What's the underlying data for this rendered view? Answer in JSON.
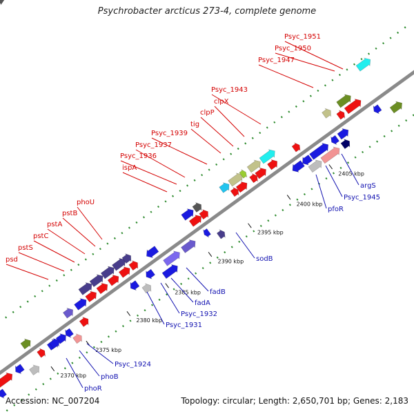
{
  "title": "Psychrobacter arcticus 273-4, complete genome",
  "footer": {
    "accession": "Accession: NC_007204",
    "summary": "Topology: circular; Length: 2,650,701 bp; Genes: 2,183"
  },
  "colors": {
    "backbone": "#8a8a8a",
    "dots": "#2e8b2e",
    "top_label": "#d40000",
    "bottom_label": "#1010b0"
  },
  "ticks": [
    {
      "label": "2370 kbp",
      "t": 90,
      "tick_side": "bottom"
    },
    {
      "label": "2375 kbp",
      "t": 153,
      "tick_side": "bottom"
    },
    {
      "label": "2380 kbp",
      "t": 226,
      "tick_side": "bottom"
    },
    {
      "label": "2385 kbp",
      "t": 295,
      "tick_side": "bottom"
    },
    {
      "label": "2390 kbp",
      "t": 372,
      "tick_side": "bottom"
    },
    {
      "label": "2395 kbp",
      "t": 443,
      "tick_side": "bottom"
    },
    {
      "label": "2400 kbp",
      "t": 513,
      "tick_side": "bottom"
    },
    {
      "label": "2405 kbp",
      "t": 588,
      "tick_side": "bottom"
    }
  ],
  "top_labels": [
    {
      "text": "psd"
    },
    {
      "text": "pstS"
    },
    {
      "text": "pstC"
    },
    {
      "text": "pstA"
    },
    {
      "text": "pstB"
    },
    {
      "text": "phoU"
    },
    {
      "text": "ispA"
    },
    {
      "text": "Psyc_1936"
    },
    {
      "text": "Psyc_1937"
    },
    {
      "text": "Psyc_1939"
    },
    {
      "text": "tig"
    },
    {
      "text": "clpP"
    },
    {
      "text": "clpX"
    },
    {
      "text": "Psyc_1943"
    },
    {
      "text": "Psyc_1947"
    },
    {
      "text": "Psyc_1950"
    },
    {
      "text": "Psyc_1951"
    }
  ],
  "bottom_labels": [
    {
      "text": "phoR"
    },
    {
      "text": "phoB"
    },
    {
      "text": "Psyc_1924"
    },
    {
      "text": "Psyc_1931"
    },
    {
      "text": "Psyc_1932"
    },
    {
      "text": "fadA"
    },
    {
      "text": "fadB"
    },
    {
      "text": "sodB"
    },
    {
      "text": "pfoR"
    },
    {
      "text": "Psyc_1945"
    },
    {
      "text": "argS"
    }
  ],
  "genes": [
    {
      "t": 12,
      "len": 26,
      "lane": 2,
      "color": "#ee1111",
      "dir": 1
    },
    {
      "t": 4,
      "len": 10,
      "lane": 3,
      "color": "#1a1ae0",
      "dir": -1
    },
    {
      "t": 24,
      "len": 12,
      "lane": 4,
      "color": "#555555",
      "dir": 1
    },
    {
      "t": 44,
      "len": 12,
      "lane": 2,
      "color": "#1a1ae0",
      "dir": -1
    },
    {
      "t": 62,
      "len": 14,
      "lane": 3,
      "color": "#bdbdbd",
      "dir": 1
    },
    {
      "t": 74,
      "len": 14,
      "lane": 1,
      "color": "#6b8e23",
      "dir": 1
    },
    {
      "t": 86,
      "len": 10,
      "lane": 2,
      "color": "#ee1111",
      "dir": 1
    },
    {
      "t": 104,
      "len": 16,
      "lane": 2,
      "color": "#1a1ae0",
      "dir": 1
    },
    {
      "t": 120,
      "len": 14,
      "lane": 2,
      "color": "#1a1ae0",
      "dir": 1
    },
    {
      "t": 134,
      "len": 10,
      "lane": 2,
      "color": "#1a1ae0",
      "dir": -1
    },
    {
      "t": 140,
      "len": 12,
      "lane": 3,
      "color": "#f29494",
      "dir": 1
    },
    {
      "t": 108,
      "len": 14,
      "lane": 2,
      "color": "#1a1ae0",
      "dir": 1
    },
    {
      "t": 150,
      "len": 14,
      "lane": 1,
      "color": "#6a5acd",
      "dir": 1
    },
    {
      "t": 162,
      "len": 12,
      "lane": 2,
      "color": "#ee1111",
      "dir": 1
    },
    {
      "t": 170,
      "len": 18,
      "lane": 1,
      "color": "#1a1ae0",
      "dir": 1
    },
    {
      "t": 188,
      "len": 20,
      "lane": 0,
      "color": "#483d8b",
      "dir": 1
    },
    {
      "t": 190,
      "len": 16,
      "lane": 1,
      "color": "#ee1111",
      "dir": 1
    },
    {
      "t": 208,
      "len": 20,
      "lane": 0,
      "color": "#483d8b",
      "dir": 1
    },
    {
      "t": 210,
      "len": 16,
      "lane": 1,
      "color": "#ee1111",
      "dir": 1
    },
    {
      "t": 228,
      "len": 20,
      "lane": 0,
      "color": "#483d8b",
      "dir": 1
    },
    {
      "t": 230,
      "len": 16,
      "lane": 1,
      "color": "#ee1111",
      "dir": 1
    },
    {
      "t": 248,
      "len": 20,
      "lane": 0,
      "color": "#483d8b",
      "dir": 1
    },
    {
      "t": 250,
      "len": 16,
      "lane": 1,
      "color": "#ee1111",
      "dir": 1
    },
    {
      "t": 266,
      "len": 12,
      "lane": 0,
      "color": "#483d8b",
      "dir": 1
    },
    {
      "t": 268,
      "len": 12,
      "lane": 1,
      "color": "#ee1111",
      "dir": 1
    },
    {
      "t": 250,
      "len": 12,
      "lane": 2,
      "color": "#1a1ae0",
      "dir": -1
    },
    {
      "t": 264,
      "len": 12,
      "lane": 3,
      "color": "#bdbdbd",
      "dir": 1
    },
    {
      "t": 278,
      "len": 12,
      "lane": 2,
      "color": "#1a1ae0",
      "dir": -1
    },
    {
      "t": 296,
      "len": 18,
      "lane": 1,
      "color": "#1a1ae0",
      "dir": -1
    },
    {
      "t": 312,
      "len": 26,
      "lane": 2,
      "color": "#7b68ee",
      "dir": 1
    },
    {
      "t": 300,
      "len": 24,
      "lane": 3,
      "color": "#1a1ae0",
      "dir": 1
    },
    {
      "t": 344,
      "len": 22,
      "lane": 2,
      "color": "#6a5acd",
      "dir": 1
    },
    {
      "t": 372,
      "len": 18,
      "lane": 0,
      "color": "#1a1ae0",
      "dir": 1
    },
    {
      "t": 376,
      "len": 18,
      "lane": 1,
      "color": "#ee1111",
      "dir": 1
    },
    {
      "t": 392,
      "len": 12,
      "lane": 0,
      "color": "#555555",
      "dir": 1
    },
    {
      "t": 394,
      "len": 12,
      "lane": 1,
      "color": "#ee1111",
      "dir": 1
    },
    {
      "t": 382,
      "len": 8,
      "lane": 2,
      "color": "#1a1ae0",
      "dir": -1
    },
    {
      "t": 398,
      "len": 10,
      "lane": 3,
      "color": "#483d8b",
      "dir": 1
    },
    {
      "t": 440,
      "len": 14,
      "lane": 0,
      "color": "#22c4ee",
      "dir": 1
    },
    {
      "t": 450,
      "len": 10,
      "lane": 1,
      "color": "#ee1111",
      "dir": 1
    },
    {
      "t": 456,
      "len": 22,
      "lane": 0,
      "color": "#c2c28a",
      "dir": 1
    },
    {
      "t": 460,
      "len": 16,
      "lane": 1,
      "color": "#ee1111",
      "dir": 1
    },
    {
      "t": 476,
      "len": 8,
      "lane": 0,
      "color": "#9acd32",
      "dir": 1
    },
    {
      "t": 484,
      "len": 10,
      "lane": 1,
      "color": "#ee1111",
      "dir": 1
    },
    {
      "t": 490,
      "len": 20,
      "lane": 0,
      "color": "#c2c28a",
      "dir": 1
    },
    {
      "t": 494,
      "len": 16,
      "lane": 1,
      "color": "#ee1111",
      "dir": 1
    },
    {
      "t": 512,
      "len": 24,
      "lane": 0,
      "color": "#22eeee",
      "dir": 1
    },
    {
      "t": 516,
      "len": 14,
      "lane": 1,
      "color": "#ee1111",
      "dir": 1
    },
    {
      "t": 560,
      "len": 10,
      "lane": 1,
      "color": "#ee1111",
      "dir": 1
    },
    {
      "t": 540,
      "len": 18,
      "lane": 2,
      "color": "#1a1ae0",
      "dir": -1
    },
    {
      "t": 558,
      "len": 14,
      "lane": 2,
      "color": "#1a1ae0",
      "dir": -1
    },
    {
      "t": 574,
      "len": 30,
      "lane": 2,
      "color": "#1a1ae0",
      "dir": 1
    },
    {
      "t": 562,
      "len": 20,
      "lane": 3,
      "color": "#bdbdbd",
      "dir": 1
    },
    {
      "t": 584,
      "len": 30,
      "lane": 3,
      "color": "#f29494",
      "dir": 1
    },
    {
      "t": 610,
      "len": 10,
      "lane": 2,
      "color": "#1a1ae0",
      "dir": -1
    },
    {
      "t": 624,
      "len": 16,
      "lane": 2,
      "color": "#1a1ae0",
      "dir": 1
    },
    {
      "t": 620,
      "len": 12,
      "lane": 3,
      "color": "#000066",
      "dir": 1
    },
    {
      "t": 624,
      "len": 12,
      "lane": 0,
      "color": "#c2c28a",
      "dir": 1
    },
    {
      "t": 640,
      "len": 10,
      "lane": 1,
      "color": "#ee1111",
      "dir": 1
    },
    {
      "t": 650,
      "len": 22,
      "lane": 0,
      "color": "#6b8e23",
      "dir": 1
    },
    {
      "t": 654,
      "len": 26,
      "lane": 1,
      "color": "#ee1111",
      "dir": 1
    },
    {
      "t": 704,
      "len": 22,
      "lane": -1,
      "color": "#22eeee",
      "dir": 1
    },
    {
      "t": 686,
      "len": 10,
      "lane": 2,
      "color": "#1a1ae0",
      "dir": -1
    },
    {
      "t": 708,
      "len": 18,
      "lane": 3,
      "color": "#6b8e23",
      "dir": 1
    }
  ]
}
